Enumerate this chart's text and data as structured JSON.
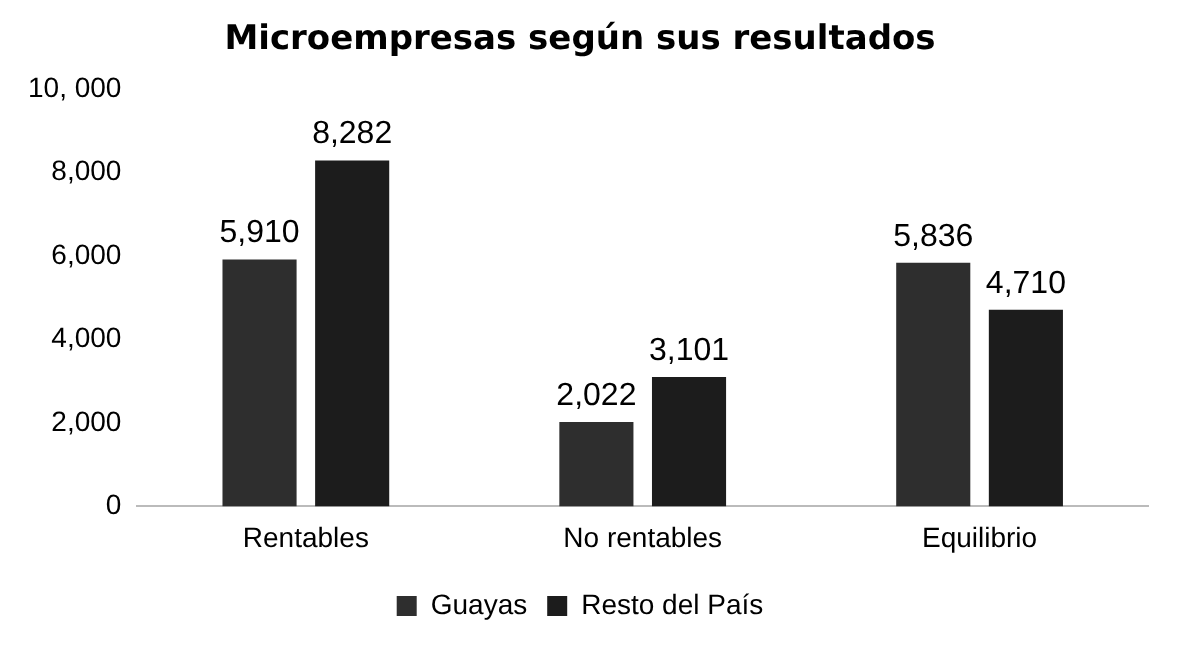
{
  "chart_data": {
    "type": "bar",
    "title": "Microempresas según sus resultados",
    "categories": [
      "Rentables",
      "No rentables",
      "Equilibrio"
    ],
    "series": [
      {
        "name": "Guayas",
        "color": "#2e2e2e",
        "values": [
          5910,
          2022,
          5836
        ],
        "value_labels": [
          "5,910",
          "2,022",
          "5,836"
        ]
      },
      {
        "name": "Resto del País",
        "color": "#1c1c1c",
        "values": [
          8282,
          3101,
          4710
        ],
        "value_labels": [
          "8,282",
          "3,101",
          "4,710"
        ]
      }
    ],
    "ylim": [
      0,
      10000
    ],
    "yticks": [
      {
        "value": 0,
        "label": "0"
      },
      {
        "value": 2000,
        "label": "2,000"
      },
      {
        "value": 4000,
        "label": "4,000"
      },
      {
        "value": 6000,
        "label": "6,000"
      },
      {
        "value": 8000,
        "label": "8,000"
      },
      {
        "value": 10000,
        "label": "10, 000"
      }
    ],
    "grid": false,
    "legend": "bottom"
  }
}
